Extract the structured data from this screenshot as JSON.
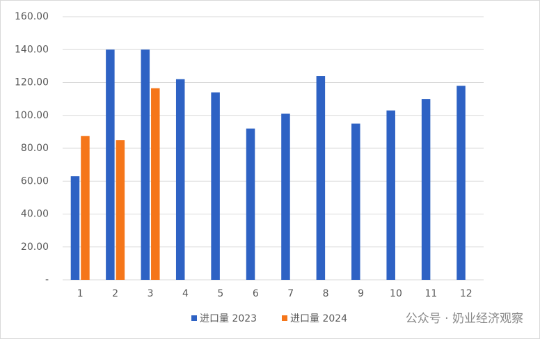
{
  "chart_data": {
    "type": "bar",
    "categories": [
      "1",
      "2",
      "3",
      "4",
      "5",
      "6",
      "7",
      "8",
      "9",
      "10",
      "11",
      "12"
    ],
    "series": [
      {
        "name": "进口量 2023",
        "color": "#2e62c4",
        "values": [
          63,
          140,
          140,
          122,
          114,
          92,
          101,
          124,
          95,
          103,
          110,
          118
        ]
      },
      {
        "name": "进口量 2024",
        "color": "#f5761a",
        "values": [
          87.5,
          85,
          116.5,
          null,
          null,
          null,
          null,
          null,
          null,
          null,
          null,
          null
        ]
      }
    ],
    "ylim": [
      0,
      160
    ],
    "yticks": [
      {
        "value": 0,
        "label": "-"
      },
      {
        "value": 20,
        "label": "20.00"
      },
      {
        "value": 40,
        "label": "40.00"
      },
      {
        "value": 60,
        "label": "60.00"
      },
      {
        "value": 80,
        "label": "80.00"
      },
      {
        "value": 100,
        "label": "100.00"
      },
      {
        "value": 120,
        "label": "120.00"
      },
      {
        "value": 140,
        "label": "140.00"
      },
      {
        "value": 160,
        "label": "160.00"
      }
    ],
    "grid": true,
    "legend": "bottom",
    "watermark": "公众号 · 奶业经济观察"
  }
}
